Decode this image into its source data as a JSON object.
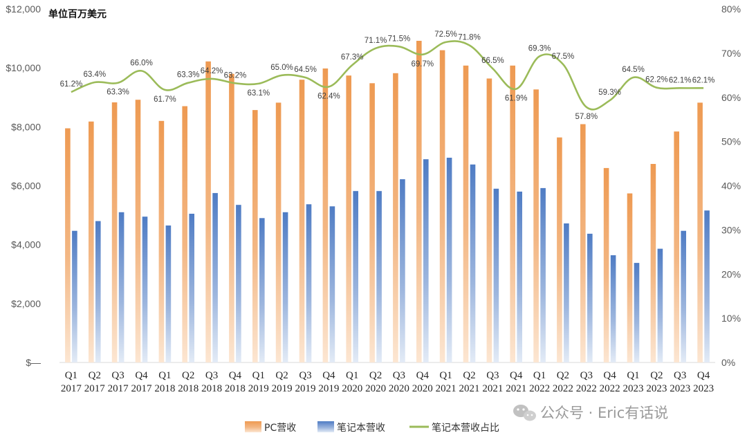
{
  "chart_data": {
    "type": "bar",
    "unit_label": "单位百万美元",
    "categories": [
      [
        "Q1",
        "2017"
      ],
      [
        "Q2",
        "2017"
      ],
      [
        "Q3",
        "2017"
      ],
      [
        "Q4",
        "2017"
      ],
      [
        "Q1",
        "2018"
      ],
      [
        "Q2",
        "2018"
      ],
      [
        "Q3",
        "2018"
      ],
      [
        "Q4",
        "2018"
      ],
      [
        "Q1",
        "2019"
      ],
      [
        "Q2",
        "2019"
      ],
      [
        "Q3",
        "2019"
      ],
      [
        "Q4",
        "2019"
      ],
      [
        "Q1",
        "2020"
      ],
      [
        "Q2",
        "2020"
      ],
      [
        "Q3",
        "2020"
      ],
      [
        "Q4",
        "2020"
      ],
      [
        "Q1",
        "2021"
      ],
      [
        "Q2",
        "2021"
      ],
      [
        "Q3",
        "2021"
      ],
      [
        "Q4",
        "2021"
      ],
      [
        "Q1",
        "2022"
      ],
      [
        "Q2",
        "2022"
      ],
      [
        "Q3",
        "2022"
      ],
      [
        "Q4",
        "2022"
      ],
      [
        "Q1",
        "2023"
      ],
      [
        "Q2",
        "2023"
      ],
      [
        "Q3",
        "2023"
      ],
      [
        "Q4",
        "2023"
      ]
    ],
    "series": [
      {
        "name": "PC营收",
        "type": "bar",
        "axis": "left",
        "color": "#F0A05E",
        "values": [
          7950,
          8180,
          8830,
          8920,
          8200,
          8700,
          10220,
          9800,
          8570,
          8820,
          9600,
          9980,
          9740,
          9480,
          9820,
          10920,
          10600,
          10080,
          9640,
          10080,
          9270,
          7640,
          8090,
          6600,
          5740,
          6740,
          7840,
          8820
        ]
      },
      {
        "name": "笔记本营收",
        "type": "bar",
        "axis": "left",
        "color": "#5B85C8",
        "values": [
          4470,
          4800,
          5100,
          4950,
          4650,
          5050,
          5750,
          5350,
          4900,
          5100,
          5370,
          5300,
          5820,
          5820,
          6220,
          6900,
          6950,
          6720,
          5900,
          5800,
          5920,
          4720,
          4370,
          3640,
          3380,
          3860,
          4470,
          5160
        ]
      },
      {
        "name": "笔记本营收占比",
        "type": "line",
        "axis": "right",
        "color": "#9BBB59",
        "values": [
          61.2,
          63.4,
          63.3,
          66.0,
          61.7,
          63.3,
          64.2,
          63.2,
          63.1,
          65.0,
          64.5,
          62.4,
          67.3,
          71.1,
          71.5,
          69.7,
          72.5,
          71.8,
          66.5,
          61.9,
          69.3,
          67.5,
          57.8,
          59.3,
          64.5,
          62.2,
          62.1,
          62.1
        ],
        "labels": [
          "61.2%",
          "63.4%",
          "63.3%",
          "66.0%",
          "61.7%",
          "63.3%",
          "64.2%",
          "63.2%",
          "63.1%",
          "65.0%",
          "64.5%",
          "62.4%",
          "67.3%",
          "71.1%",
          "71.5%",
          "69.7%",
          "72.5%",
          "71.8%",
          "66.5%",
          "61.9%",
          "69.3%",
          "67.5%",
          "57.8%",
          "59.3%",
          "64.5%",
          "62.2%",
          "62.1%",
          "62.1%"
        ]
      }
    ],
    "y_left": {
      "range": [
        0,
        12000
      ],
      "ticks": [
        0,
        2000,
        4000,
        6000,
        8000,
        10000,
        12000
      ],
      "tick_labels": [
        "$—",
        "$2,000",
        "$4,000",
        "$6,000",
        "$8,000",
        "$10,000",
        "$12,000"
      ]
    },
    "y_right": {
      "range": [
        0,
        80
      ],
      "ticks": [
        0,
        10,
        20,
        30,
        40,
        50,
        60,
        70,
        80
      ],
      "tick_labels": [
        "0%",
        "10%",
        "20%",
        "30%",
        "40%",
        "50%",
        "60%",
        "70%",
        "80%"
      ]
    },
    "grid": false,
    "legend_position": "bottom-center"
  },
  "watermark": {
    "icon": "wechat-icon",
    "text": "公众号 · Eric有话说"
  }
}
